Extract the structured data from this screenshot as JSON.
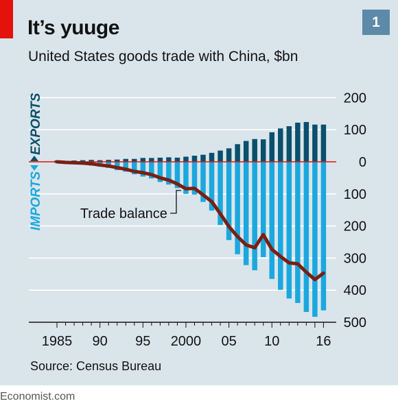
{
  "header": {
    "title": "It’s yuuge",
    "subtitle": "United States goods trade with China, $bn",
    "badge": "1"
  },
  "source": "Source: Census Bureau",
  "footer": "Economist.com",
  "colors": {
    "background": "#d9e5eb",
    "exports": "#0b4f6c",
    "imports": "#1ba8de",
    "balance": "#7a1f12",
    "zero_line": "#e3120b",
    "accent_tag": "#e3120b",
    "badge": "#5d8aa8"
  },
  "chart_data": {
    "type": "bar",
    "title": "It’s yuuge",
    "subtitle": "United States goods trade with China, $bn",
    "side_labels": {
      "up": "EXPORTS",
      "down": "IMPORTS"
    },
    "x": [
      1985,
      1986,
      1987,
      1988,
      1989,
      1990,
      1991,
      1992,
      1993,
      1994,
      1995,
      1996,
      1997,
      1998,
      1999,
      2000,
      2001,
      2002,
      2003,
      2004,
      2005,
      2006,
      2007,
      2008,
      2009,
      2010,
      2011,
      2012,
      2013,
      2014,
      2015,
      2016
    ],
    "xtick_labels": [
      {
        "x": 1985,
        "label": "1985"
      },
      {
        "x": 1990,
        "label": "90"
      },
      {
        "x": 1995,
        "label": "95"
      },
      {
        "x": 2000,
        "label": "2000"
      },
      {
        "x": 2005,
        "label": "05"
      },
      {
        "x": 2010,
        "label": "10"
      },
      {
        "x": 2016,
        "label": "16"
      }
    ],
    "ytick_labels": [
      {
        "y": 200,
        "label": "200"
      },
      {
        "y": 100,
        "label": "100"
      },
      {
        "y": 0,
        "label": "0"
      },
      {
        "y": -100,
        "label": "100"
      },
      {
        "y": -200,
        "label": "200"
      },
      {
        "y": -300,
        "label": "300"
      },
      {
        "y": -400,
        "label": "400"
      },
      {
        "y": -500,
        "label": "500"
      }
    ],
    "ylim": [
      -500,
      200
    ],
    "grid": true,
    "series": [
      {
        "values": [
          4,
          3,
          4,
          5,
          6,
          5,
          6,
          7,
          9,
          9,
          12,
          12,
          13,
          14,
          13,
          16,
          19,
          22,
          28,
          35,
          42,
          55,
          65,
          71,
          70,
          92,
          104,
          111,
          122,
          124,
          116,
          116
        ]
      },
      {
        "values": [
          -4,
          -5,
          -6,
          -9,
          -12,
          -15,
          -19,
          -26,
          -31,
          -39,
          -46,
          -52,
          -63,
          -71,
          -82,
          -100,
          -102,
          -125,
          -152,
          -197,
          -244,
          -288,
          -322,
          -338,
          -297,
          -365,
          -399,
          -426,
          -440,
          -468,
          -483,
          -463
        ]
      },
      {
        "values": [
          0,
          -2,
          -3,
          -4,
          -6,
          -10,
          -13,
          -18,
          -23,
          -30,
          -34,
          -40,
          -50,
          -57,
          -69,
          -84,
          -83,
          -103,
          -124,
          -162,
          -202,
          -233,
          -259,
          -268,
          -227,
          -273,
          -295,
          -315,
          -318,
          -344,
          -367,
          -347
        ]
      }
    ],
    "annotations": [
      {
        "text": "Trade balance",
        "x": 2000,
        "y": -85
      }
    ]
  }
}
